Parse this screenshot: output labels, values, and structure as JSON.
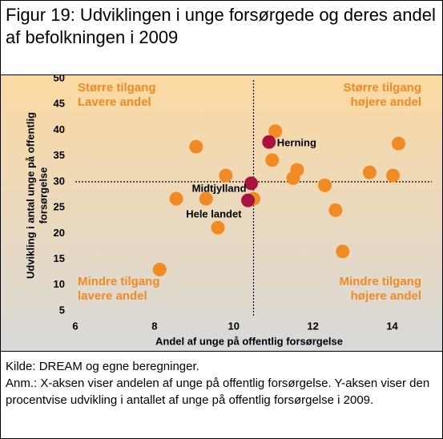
{
  "chart_data": {
    "type": "scatter",
    "title": "Figur 19: Udviklingen i unge forsørgede og deres andel af befolkningen i 2009",
    "xlabel": "Andel af unge på offentlig forsørgelse",
    "ylabel": [
      "Udvikling i antal unge på offentlig",
      "forsørgelse"
    ],
    "xlim": [
      6,
      15
    ],
    "ylim": [
      5,
      50
    ],
    "xticks": [
      6,
      8,
      10,
      12,
      14
    ],
    "yticks": [
      5,
      10,
      15,
      20,
      25,
      30,
      35,
      40,
      45,
      50
    ],
    "vlines": [
      10.5
    ],
    "hlines": [
      30
    ],
    "series": [
      {
        "color": "#f08a24",
        "x": [
          8.13,
          8.55,
          9.05,
          9.3,
          9.6,
          9.8,
          10.5,
          11.05,
          10.97,
          11.5,
          11.6,
          12.3,
          12.57,
          12.75,
          13.43,
          14.02,
          14.16
        ],
        "values": [
          13.0,
          26.7,
          36.8,
          26.7,
          21.1,
          31.2,
          26.7,
          39.8,
          34.2,
          30.7,
          32.3,
          29.3,
          24.5,
          16.5,
          31.8,
          31.2,
          37.4
        ]
      },
      {
        "color": "#a8123f",
        "x": [
          10.89,
          10.44,
          10.36
        ],
        "values": [
          37.7,
          29.7,
          26.4
        ],
        "labels": [
          "Herning",
          "Midtjylland",
          "Hele landet"
        ]
      }
    ],
    "annotations": [
      [
        "Større tilgang",
        "Lavere andel"
      ],
      [
        "Større tilgang",
        "højere andel"
      ],
      [
        "Mindre tilgang",
        "lavere andel"
      ],
      [
        "Mindre tilgang",
        "højere andel"
      ]
    ],
    "source": "Kilde: DREAM og egne beregninger.",
    "note": "Anm.: X-aksen viser andelen af unge på offentlig forsørgelse. Y-aksen viser den procentvise udvikling i antallet af unge på offentlig forsørgelse i 2009."
  }
}
